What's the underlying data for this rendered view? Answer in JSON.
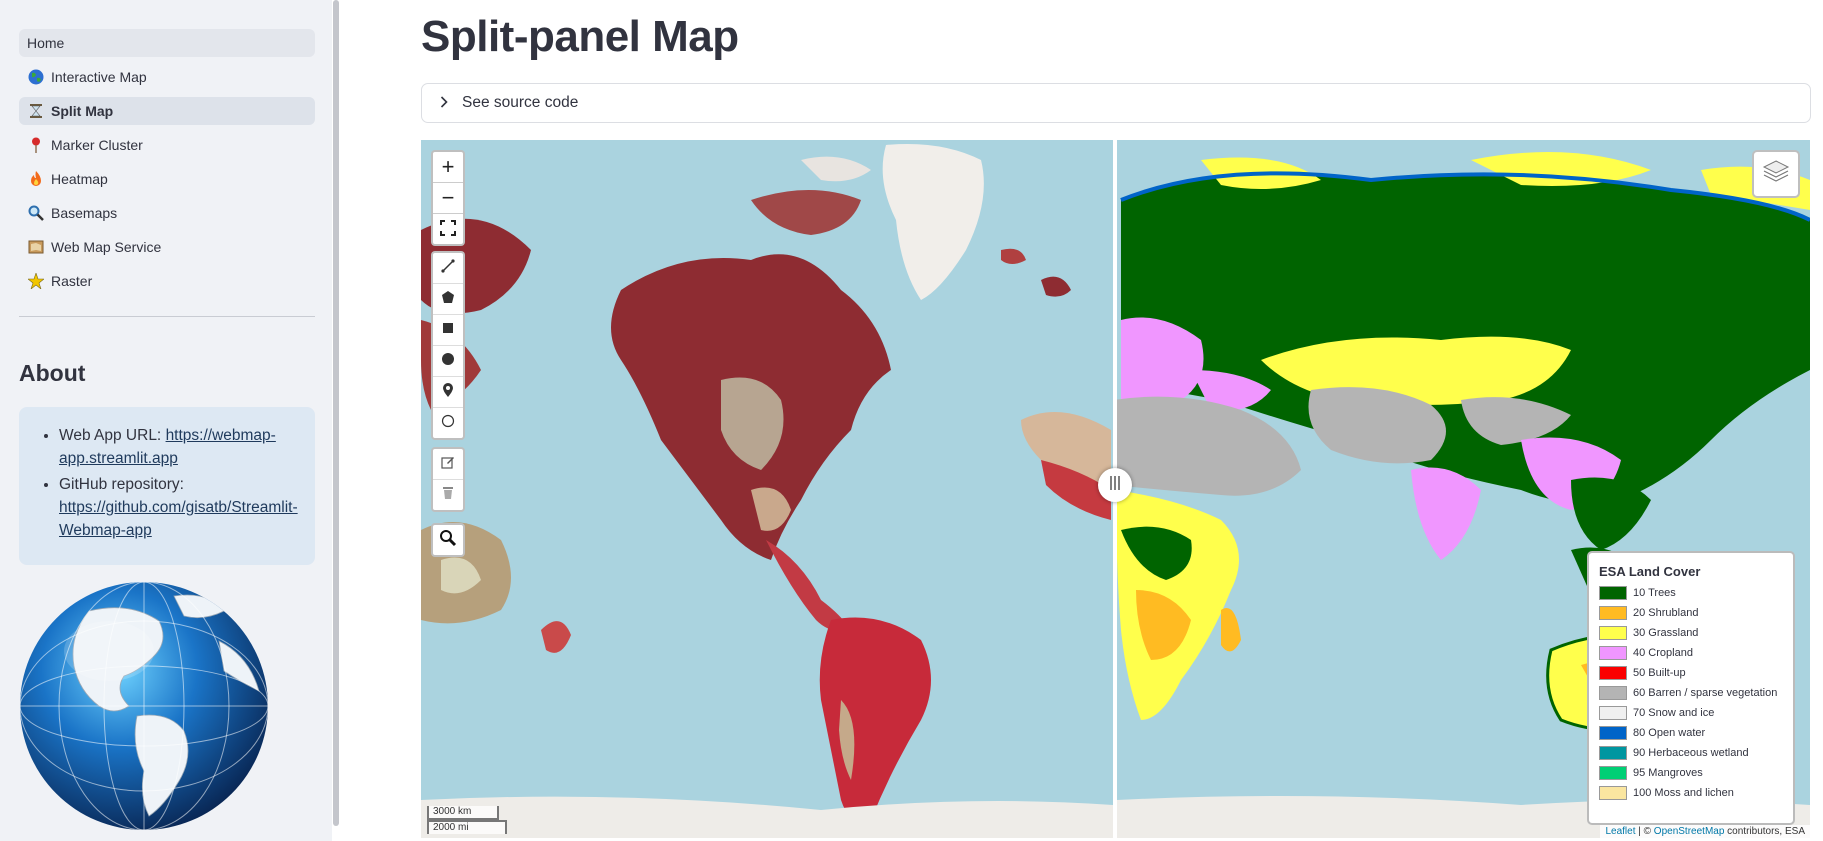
{
  "sidebar": {
    "nav": [
      {
        "label": "Home",
        "icon": "home"
      },
      {
        "label": "Interactive Map",
        "icon": "globe-icon"
      },
      {
        "label": "Split Map",
        "icon": "hourglass-icon"
      },
      {
        "label": "Marker Cluster",
        "icon": "pushpin-icon"
      },
      {
        "label": "Heatmap",
        "icon": "fire-icon"
      },
      {
        "label": "Basemaps",
        "icon": "magnifier-icon"
      },
      {
        "label": "Web Map Service",
        "icon": "map-book-icon"
      },
      {
        "label": "Raster",
        "icon": "star-icon"
      }
    ],
    "active_item": "Split Map",
    "about": {
      "heading": "About",
      "web_app_prefix": "Web App URL: ",
      "web_app_url": "https://webmap-app.streamlit.app",
      "github_prefix": "GitHub repository:",
      "github_url": "https://github.com/gisatb/Streamlit-Webmap-app"
    }
  },
  "main": {
    "title": "Split-panel Map",
    "expander_label": "See source code"
  },
  "map": {
    "zoom_in": "+",
    "zoom_out": "−",
    "scale_km": "3000 km",
    "scale_mi": "2000 mi",
    "attribution_leaflet": "Leaflet",
    "attribution_sep": " | © ",
    "attribution_osm": "OpenStreetMap",
    "attribution_rest": " contributors, ESA",
    "legend": {
      "title": "ESA Land Cover",
      "items": [
        {
          "label": "10 Trees",
          "color": "#006400"
        },
        {
          "label": "20 Shrubland",
          "color": "#ffbb22"
        },
        {
          "label": "30 Grassland",
          "color": "#ffff4c"
        },
        {
          "label": "40 Cropland",
          "color": "#f096ff"
        },
        {
          "label": "50 Built-up",
          "color": "#fa0000"
        },
        {
          "label": "60 Barren / sparse vegetation",
          "color": "#b4b4b4"
        },
        {
          "label": "70 Snow and ice",
          "color": "#f0f0f0"
        },
        {
          "label": "80 Open water",
          "color": "#0064c8"
        },
        {
          "label": "90 Herbaceous wetland",
          "color": "#0096a0"
        },
        {
          "label": "95 Mangroves",
          "color": "#00cf75"
        },
        {
          "label": "100 Moss and lichen",
          "color": "#fae6a0"
        }
      ]
    }
  }
}
